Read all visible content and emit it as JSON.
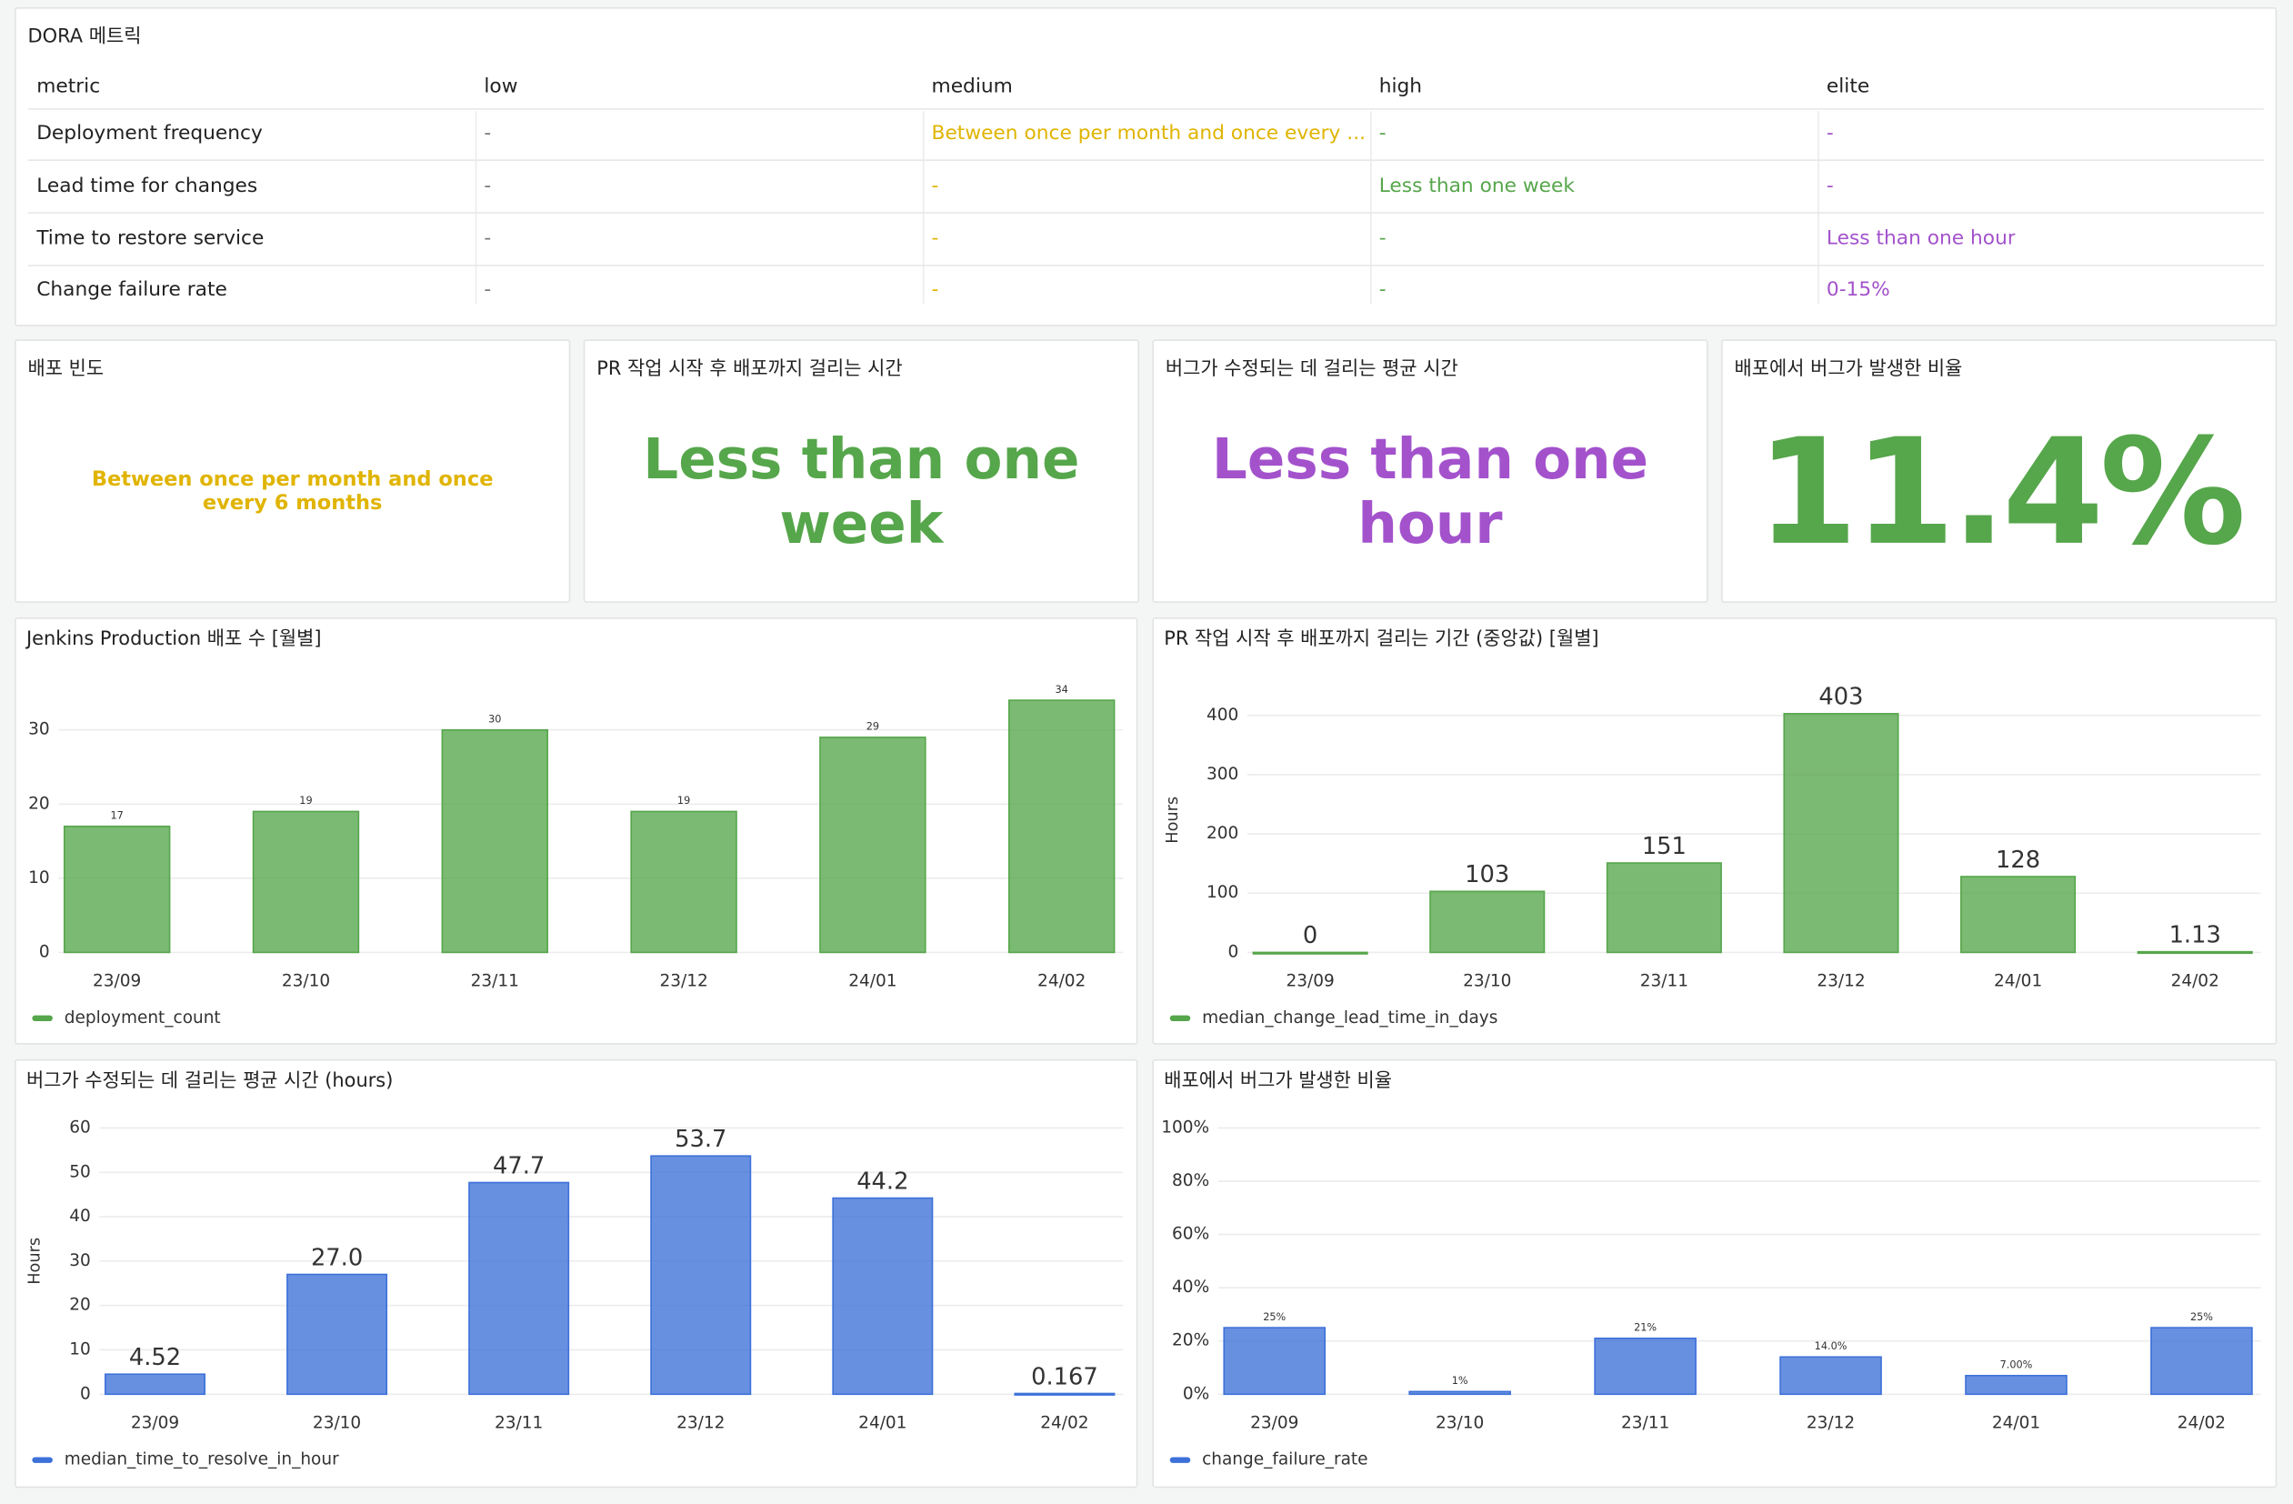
{
  "table": {
    "title": "DORA 메트릭",
    "columns": [
      "metric",
      "low",
      "medium",
      "high",
      "elite"
    ],
    "column_colors": [
      "#222222",
      "#777777",
      "#e0b400",
      "#56a64b",
      "#a352cc"
    ],
    "rows": [
      [
        "Deployment frequency",
        "-",
        "Between once per month and once every ...",
        "-",
        "-"
      ],
      [
        "Lead time for changes",
        "-",
        "-",
        "Less than one week",
        "-"
      ],
      [
        "Time to restore service",
        "-",
        "-",
        "-",
        "Less than one hour"
      ],
      [
        "Change failure rate",
        "-",
        "-",
        "-",
        "0-15%"
      ]
    ]
  },
  "stats": [
    {
      "title": "배포 빈도",
      "value": "Between once per month and once every 6 months",
      "color": "#e0b400"
    },
    {
      "title": "PR 작업 시작 후 배포까지 걸리는 시간",
      "value": "Less than one week",
      "color": "#56a64b"
    },
    {
      "title": "버그가 수정되는 데 걸리는 평균 시간",
      "value": "Less than one hour",
      "color": "#a352cc"
    },
    {
      "title": "배포에서 버그가 발생한 비율",
      "value": "11.4%",
      "color": "#56a64b"
    }
  ],
  "chart_data": [
    {
      "type": "bar",
      "title": "Jenkins Production 배포 수 [월별]",
      "categories": [
        "23/09",
        "23/10",
        "23/11",
        "23/12",
        "24/01",
        "24/02"
      ],
      "series": [
        {
          "name": "deployment_count",
          "color": "#56a64b",
          "values": [
            17,
            19,
            30,
            19,
            29,
            34
          ]
        }
      ],
      "ylim": [
        0,
        36
      ],
      "yticks": [
        0,
        10,
        20,
        30
      ],
      "grid": true
    },
    {
      "type": "bar",
      "title": "PR 작업 시작 후 배포까지 걸리는 기간 (중앙값) [월별]",
      "y_label": "Hours",
      "categories": [
        "23/09",
        "23/10",
        "23/11",
        "23/12",
        "24/01",
        "24/02"
      ],
      "series": [
        {
          "name": "median_change_lead_time_in_days",
          "color": "#56a64b",
          "values": [
            0,
            103,
            151,
            403,
            128,
            1.13
          ]
        }
      ],
      "ylim": [
        0,
        447
      ],
      "yticks": [
        0,
        100,
        200,
        300,
        400
      ],
      "grid": true
    },
    {
      "type": "bar",
      "title": "버그가 수정되는 데 걸리는 평균 시간 (hours)",
      "y_label": "Hours",
      "categories": [
        "23/09",
        "23/10",
        "23/11",
        "23/12",
        "24/01",
        "24/02"
      ],
      "series": [
        {
          "name": "median_time_to_resolve_in_hour",
          "color": "#3d71d9",
          "values": [
            4.52,
            27.0,
            47.7,
            53.7,
            44.2,
            0.167
          ],
          "value_labels": [
            "4.52",
            "27.0",
            "47.7",
            "53.7",
            "44.2",
            "0.167"
          ]
        }
      ],
      "ylim": [
        0,
        60
      ],
      "yticks": [
        0,
        10,
        20,
        30,
        40,
        50,
        60
      ],
      "grid": true
    },
    {
      "type": "bar",
      "title": "배포에서 버그가 발생한 비율",
      "categories": [
        "23/09",
        "23/10",
        "23/11",
        "23/12",
        "24/01",
        "24/02"
      ],
      "series": [
        {
          "name": "change_failure_rate",
          "color": "#3d71d9",
          "values": [
            25,
            1,
            21,
            14.0,
            7.0,
            25
          ],
          "value_labels": [
            "25%",
            "1%",
            "21%",
            "14.0%",
            "7.00%",
            "25%"
          ]
        }
      ],
      "ylim": [
        0,
        100
      ],
      "yticks": [
        {
          "value": 0,
          "label": "0%"
        },
        {
          "value": 20,
          "label": "20%"
        },
        {
          "value": 40,
          "label": "40%"
        },
        {
          "value": 60,
          "label": "60%"
        },
        {
          "value": 80,
          "label": "80%"
        },
        {
          "value": 100,
          "label": "100%"
        }
      ],
      "grid": true
    }
  ]
}
